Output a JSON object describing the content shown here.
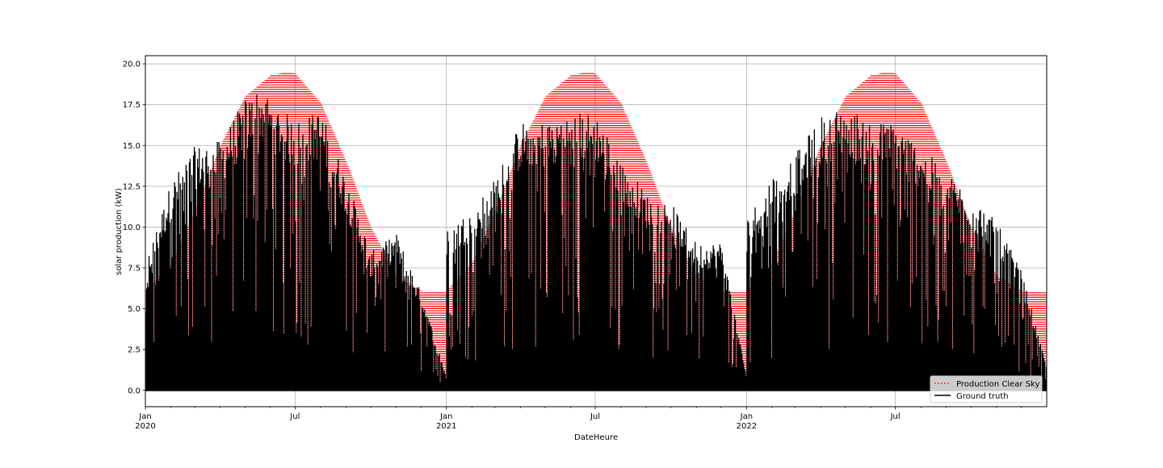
{
  "chart_data": {
    "type": "line",
    "title": "",
    "xlabel": "DateHeure",
    "ylabel": "solar production (kW)",
    "xlim": [
      "2020-01-01",
      "2022-12-31"
    ],
    "ylim": [
      -1.0,
      20.5
    ],
    "grid": true,
    "legend_position": "bottom-right",
    "y_ticks": [
      0.0,
      2.5,
      5.0,
      7.5,
      10.0,
      12.5,
      15.0,
      17.5,
      20.0
    ],
    "y_tick_labels": [
      "0.0",
      "2.5",
      "5.0",
      "7.5",
      "10.0",
      "12.5",
      "15.0",
      "17.5",
      "20.0"
    ],
    "x_major_ticks": [
      {
        "date": "2020-01-01",
        "label": "Jan",
        "year": "2020"
      },
      {
        "date": "2020-07-01",
        "label": "Jul",
        "year": ""
      },
      {
        "date": "2021-01-01",
        "label": "Jan",
        "year": "2021"
      },
      {
        "date": "2021-07-01",
        "label": "Jul",
        "year": ""
      },
      {
        "date": "2022-01-01",
        "label": "Jan",
        "year": "2022"
      },
      {
        "date": "2022-07-01",
        "label": "Jul",
        "year": ""
      }
    ],
    "series": [
      {
        "name": "Production Clear Sky",
        "color": "#ff0000",
        "style": "dotted",
        "daily_peak": {
          "dates": [
            "2020-01-01",
            "2020-02-01",
            "2020-03-01",
            "2020-04-01",
            "2020-05-01",
            "2020-06-01",
            "2020-06-21",
            "2020-07-01",
            "2020-08-01",
            "2020-09-01",
            "2020-10-01",
            "2020-11-01",
            "2020-12-01",
            "2020-12-21",
            "2021-01-01",
            "2021-02-01",
            "2021-03-01",
            "2021-04-01",
            "2021-05-01",
            "2021-06-01",
            "2021-06-21",
            "2021-07-01",
            "2021-08-01",
            "2021-09-01",
            "2021-10-01",
            "2021-11-01",
            "2021-12-01",
            "2021-12-21",
            "2022-01-01",
            "2022-02-01",
            "2022-03-01",
            "2022-04-01",
            "2022-05-01",
            "2022-06-01",
            "2022-06-21",
            "2022-07-01",
            "2022-08-01",
            "2022-09-01",
            "2022-10-01",
            "2022-11-01",
            "2022-12-01",
            "2022-12-31"
          ],
          "values": [
            6.1,
            7.8,
            11.0,
            15.0,
            18.0,
            19.3,
            19.5,
            19.4,
            17.6,
            14.0,
            10.0,
            7.0,
            6.1,
            6.0,
            6.1,
            7.8,
            11.0,
            15.0,
            18.0,
            19.3,
            19.5,
            19.4,
            17.6,
            14.0,
            10.0,
            7.0,
            6.1,
            6.0,
            6.1,
            7.8,
            11.0,
            15.0,
            18.0,
            19.3,
            19.5,
            19.4,
            17.6,
            14.0,
            10.0,
            7.0,
            6.1,
            6.0
          ]
        }
      },
      {
        "name": "Ground truth",
        "color": "#000000",
        "style": "solid",
        "daily_peak": {
          "dates": [
            "2020-01-01",
            "2020-01-05",
            "2020-02-01",
            "2020-03-01",
            "2020-04-01",
            "2020-05-01",
            "2020-05-20",
            "2020-06-01",
            "2020-07-01",
            "2020-08-01",
            "2020-09-01",
            "2020-10-01",
            "2020-11-01",
            "2020-12-01",
            "2020-12-31",
            "2021-01-01",
            "2021-02-01",
            "2021-03-01",
            "2021-04-01",
            "2021-05-01",
            "2021-06-01",
            "2021-07-01",
            "2021-08-01",
            "2021-09-01",
            "2021-10-01",
            "2021-11-01",
            "2021-12-01",
            "2021-12-31",
            "2022-01-01",
            "2022-02-01",
            "2022-03-01",
            "2022-04-01",
            "2022-05-01",
            "2022-06-01",
            "2022-07-01",
            "2022-08-01",
            "2022-09-01",
            "2022-10-01",
            "2022-11-01",
            "2022-12-01",
            "2022-12-31"
          ],
          "values": [
            5.5,
            8.5,
            12.8,
            15.0,
            15.3,
            17.9,
            18.6,
            17.8,
            16.5,
            17.2,
            13.0,
            8.5,
            9.6,
            6.0,
            1.0,
            9.8,
            11.2,
            13.0,
            16.5,
            16.5,
            17.1,
            17.0,
            14.3,
            12.0,
            11.5,
            9.0,
            9.1,
            1.0,
            10.5,
            13.2,
            14.5,
            16.8,
            17.5,
            16.5,
            16.4,
            15.0,
            13.3,
            12.0,
            10.3,
            7.3,
            1.5
          ]
        }
      }
    ]
  }
}
